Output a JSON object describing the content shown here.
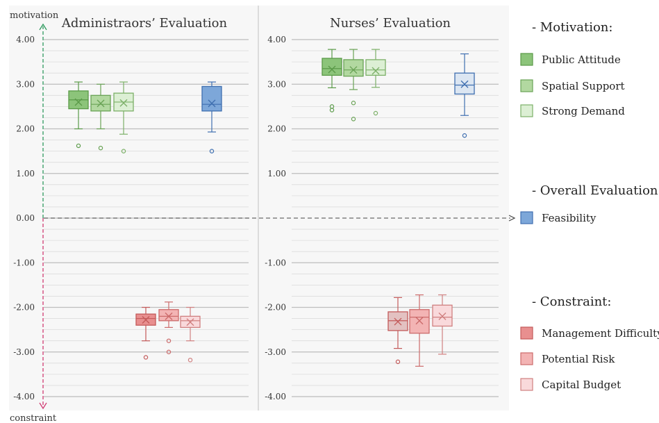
{
  "chart_data": {
    "type": "box",
    "axis": {
      "top_label": "motivation",
      "bottom_label": "constraint",
      "ylim": [
        -4,
        4
      ],
      "left_ticks": [
        "4.00",
        "3.00",
        "2.00",
        "1.00",
        "0.00",
        "-1.00",
        "-2.00",
        "-3.00",
        "-4.00"
      ],
      "right_ticks": [
        "4.00",
        "3.00",
        "2.00",
        "1.00",
        "-1.00",
        "-2.00",
        "-3.00",
        "-4.00"
      ],
      "grid": true
    },
    "panels": [
      {
        "title": "Administraors’ Evaluation",
        "boxes": [
          {
            "series": "Public Attitude",
            "min": 2.0,
            "q1": 2.45,
            "median": 2.65,
            "q3": 2.85,
            "max": 3.05,
            "mean": 2.6,
            "outliers": [
              1.62
            ]
          },
          {
            "series": "Spatial Support",
            "min": 2.0,
            "q1": 2.4,
            "median": 2.55,
            "q3": 2.75,
            "max": 3.0,
            "mean": 2.57,
            "outliers": [
              1.57
            ]
          },
          {
            "series": "Strong Demand",
            "min": 1.88,
            "q1": 2.4,
            "median": 2.6,
            "q3": 2.8,
            "max": 3.05,
            "mean": 2.58,
            "outliers": [
              1.5
            ]
          },
          {
            "series": "Management Difficulty",
            "min": -2.75,
            "q1": -2.4,
            "median": -2.25,
            "q3": -2.15,
            "max": -2.0,
            "mean": -2.28,
            "outliers": [
              -3.12
            ]
          },
          {
            "series": "Potential Risk",
            "min": -2.45,
            "q1": -2.3,
            "median": -2.2,
            "q3": -2.05,
            "max": -1.88,
            "mean": -2.2,
            "outliers": [
              -2.75,
              -3.0
            ]
          },
          {
            "series": "Capital Budget",
            "min": -2.75,
            "q1": -2.45,
            "median": -2.3,
            "q3": -2.2,
            "max": -2.0,
            "mean": -2.33,
            "outliers": [
              -3.18
            ]
          },
          {
            "series": "Feasibility",
            "min": 1.93,
            "q1": 2.4,
            "median": 2.55,
            "q3": 2.95,
            "max": 3.05,
            "mean": 2.57,
            "outliers": [
              1.5
            ]
          }
        ]
      },
      {
        "title": "Nurses’ Evaluation",
        "boxes": [
          {
            "series": "Public Attitude",
            "min": 2.92,
            "q1": 3.2,
            "median": 3.35,
            "q3": 3.58,
            "max": 3.78,
            "mean": 3.33,
            "outliers": [
              2.5,
              2.42
            ]
          },
          {
            "series": "Spatial Support",
            "min": 2.88,
            "q1": 3.18,
            "median": 3.32,
            "q3": 3.55,
            "max": 3.78,
            "mean": 3.32,
            "outliers": [
              2.58,
              2.22
            ]
          },
          {
            "series": "Strong Demand",
            "min": 2.93,
            "q1": 3.2,
            "median": 3.32,
            "q3": 3.55,
            "max": 3.78,
            "mean": 3.3,
            "outliers": [
              2.35
            ]
          },
          {
            "series": "Management Difficulty",
            "min": -2.92,
            "q1": -2.52,
            "median": -2.3,
            "q3": -2.1,
            "max": -1.78,
            "mean": -2.32,
            "outliers": [
              -3.22
            ]
          },
          {
            "series": "Potential Risk",
            "min": -3.32,
            "q1": -2.58,
            "median": -2.22,
            "q3": -2.05,
            "max": -1.72,
            "mean": -2.3,
            "outliers": []
          },
          {
            "series": "Capital Budget",
            "min": -3.05,
            "q1": -2.42,
            "median": -2.22,
            "q3": -1.95,
            "max": -1.72,
            "mean": -2.2,
            "outliers": []
          },
          {
            "series": "Feasibility",
            "min": 2.3,
            "q1": 2.78,
            "median": 2.98,
            "q3": 3.25,
            "max": 3.68,
            "mean": 3.0,
            "outliers": [
              1.85
            ]
          }
        ]
      }
    ],
    "legend": [
      {
        "heading": "- Motivation:",
        "items": [
          {
            "label": "Public Attitude",
            "fill": "#8cc47a",
            "stroke": "#5a9a48"
          },
          {
            "label": "Spatial Support",
            "fill": "#b2d8a0",
            "stroke": "#6aa356"
          },
          {
            "label": "Strong Demand",
            "fill": "#dcefd4",
            "stroke": "#7cb068"
          }
        ]
      },
      {
        "heading": "- Overall Evaluation:",
        "items": [
          {
            "label": "Feasibility",
            "fill": "#7da7d9",
            "stroke": "#3f6fb0"
          }
        ]
      },
      {
        "heading": "- Constraint:",
        "items": [
          {
            "label": "Management Difficulty",
            "fill": "#e88f8f",
            "stroke": "#c35a5a"
          },
          {
            "label": "Potential Risk",
            "fill": "#f3b4b4",
            "stroke": "#cc6b6b"
          },
          {
            "label": "Capital Budget",
            "fill": "#f9d9db",
            "stroke": "#d08080"
          }
        ]
      }
    ],
    "colors": {
      "Public Attitude": {
        "fill": "#8cc47a",
        "stroke": "#5a9a48"
      },
      "Spatial Support": {
        "fill": "#b2d8a0",
        "stroke": "#6aa356"
      },
      "Strong Demand": {
        "fill": "#dcefd4",
        "stroke": "#7cb068"
      },
      "Management Difficulty": {
        "fill": "#e88f8f",
        "stroke": "#c35a5a"
      },
      "Potential Risk": {
        "fill": "#f3b4b4",
        "stroke": "#cc6b6b"
      },
      "Capital Budget": {
        "fill": "#f9d9db",
        "stroke": "#d08080"
      },
      "Feasibility": {
        "fill": "#7da7d9",
        "stroke": "#3f6fb0"
      },
      "Feasibility_nurses": {
        "fill": "#dce6f2",
        "stroke": "#3f6fb0"
      },
      "Management Difficulty_nurses": {
        "fill": "#e3c1c1",
        "stroke": "#c35a5a"
      },
      "motivation_arrow": "#2e9a5e",
      "constraint_arrow": "#d03a72"
    }
  }
}
